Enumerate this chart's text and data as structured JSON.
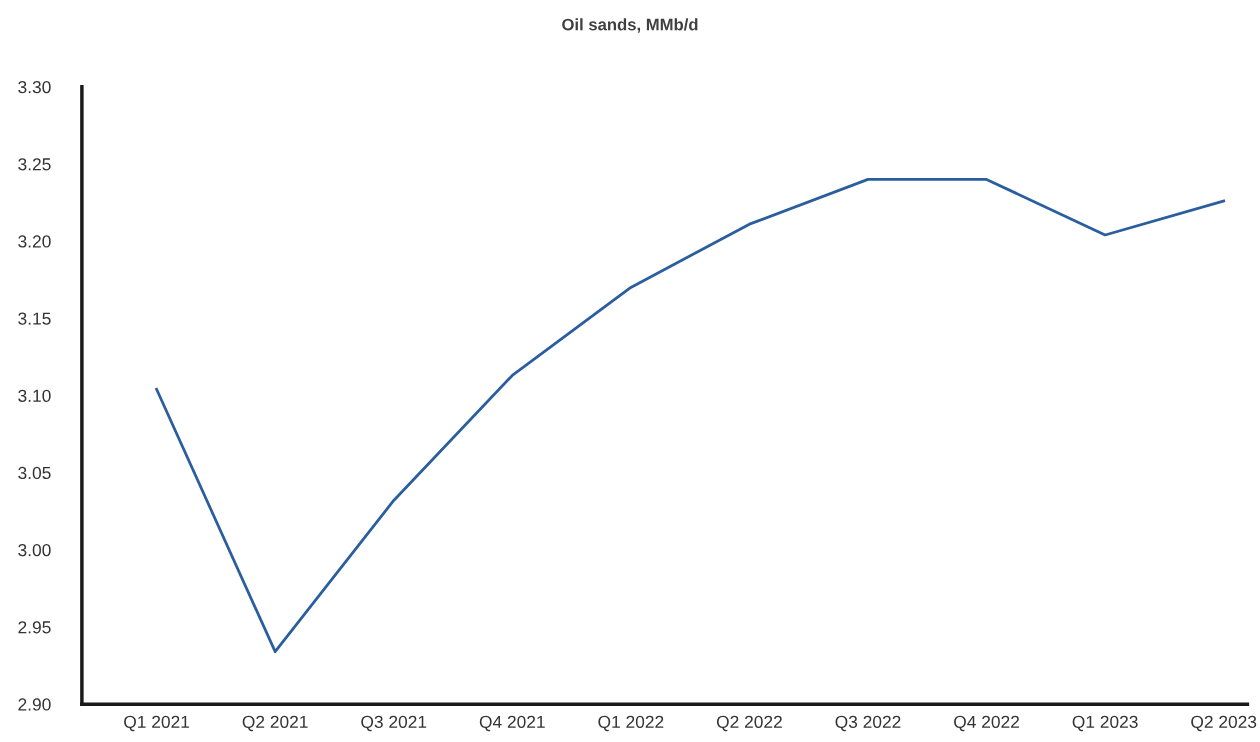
{
  "chart_data": {
    "type": "line",
    "title": "Oil sands, MMb/d",
    "categories": [
      "Q1 2021",
      "Q2 2021",
      "Q3 2021",
      "Q4 2021",
      "Q1 2022",
      "Q2 2022",
      "Q3 2022",
      "Q4 2022",
      "Q1 2023",
      "Q2 2023"
    ],
    "series": [
      {
        "color": "#2a5e9f",
        "values": [
          3.104,
          2.934,
          3.032,
          3.113,
          3.17,
          3.211,
          3.24,
          3.24,
          3.204,
          3.226
        ]
      }
    ],
    "ylim": [
      2.9,
      3.3
    ],
    "yticks": [
      {
        "value": 2.9,
        "label": "2.90"
      },
      {
        "value": 2.95,
        "label": "2.95"
      },
      {
        "value": 3.0,
        "label": "3.00"
      },
      {
        "value": 3.05,
        "label": "3.05"
      },
      {
        "value": 3.1,
        "label": "3.10"
      },
      {
        "value": 3.15,
        "label": "3.15"
      },
      {
        "value": 3.2,
        "label": "3.20"
      },
      {
        "value": 3.25,
        "label": "3.25"
      },
      {
        "value": 3.3,
        "label": "3.30"
      }
    ],
    "grid": false,
    "legend": false,
    "marker": "none",
    "line_style": "solid"
  }
}
